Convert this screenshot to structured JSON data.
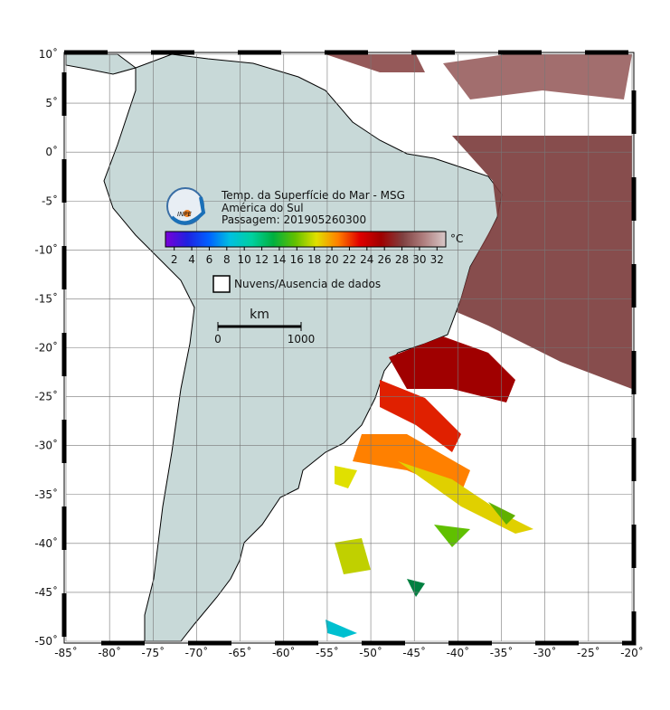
{
  "map": {
    "title": "Temp. da Superfície do Mar - MSG",
    "subtitle": "América do Sul",
    "pass": "Passagem: 201905260300",
    "logo": "INPE",
    "xlim": [
      -85,
      -20
    ],
    "ylim": [
      -50,
      10
    ],
    "xticks": [
      {
        "value": -85,
        "label": "-85˚"
      },
      {
        "value": -80,
        "label": "-80˚"
      },
      {
        "value": -75,
        "label": "-75˚"
      },
      {
        "value": -70,
        "label": "-70˚"
      },
      {
        "value": -65,
        "label": "-65˚"
      },
      {
        "value": -60,
        "label": "-60˚"
      },
      {
        "value": -55,
        "label": "-55˚"
      },
      {
        "value": -50,
        "label": "-50˚"
      },
      {
        "value": -45,
        "label": "-45˚"
      },
      {
        "value": -40,
        "label": "-40˚"
      },
      {
        "value": -35,
        "label": "-35˚"
      },
      {
        "value": -30,
        "label": "-30˚"
      },
      {
        "value": -25,
        "label": "-25˚"
      },
      {
        "value": -20,
        "label": "-20˚"
      }
    ],
    "yticks": [
      {
        "value": 10,
        "label": "10˚"
      },
      {
        "value": 5,
        "label": "5˚"
      },
      {
        "value": 0,
        "label": "0˚"
      },
      {
        "value": -5,
        "label": "-5˚"
      },
      {
        "value": -10,
        "label": "-10˚"
      },
      {
        "value": -15,
        "label": "-15˚"
      },
      {
        "value": -20,
        "label": "-20˚"
      },
      {
        "value": -25,
        "label": "-25˚"
      },
      {
        "value": -30,
        "label": "-30˚"
      },
      {
        "value": -35,
        "label": "-35˚"
      },
      {
        "value": -40,
        "label": "-40˚"
      },
      {
        "value": -45,
        "label": "-45˚"
      },
      {
        "value": -50,
        "label": "-50˚"
      }
    ],
    "grid": true,
    "colorbar": {
      "lim": [
        1,
        33
      ],
      "ticks": [
        2,
        4,
        6,
        8,
        10,
        12,
        14,
        16,
        18,
        20,
        22,
        24,
        26,
        28,
        30,
        32
      ],
      "unit": "°C",
      "colors": [
        "#7a00d8",
        "#2020e0",
        "#0060ff",
        "#00c0e0",
        "#00d0a0",
        "#00b040",
        "#60c000",
        "#e0e000",
        "#ff8000",
        "#e00000",
        "#a00000",
        "#804040",
        "#b08080",
        "#d8c8c8"
      ]
    },
    "legend": "Nuvens/Ausencia de dados",
    "scale": {
      "unit": "km",
      "ticks": [
        0,
        1000
      ]
    }
  }
}
